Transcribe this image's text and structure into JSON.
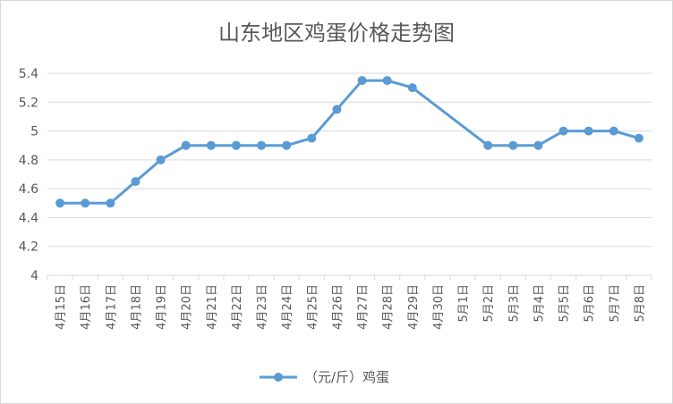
{
  "chart_data": {
    "type": "line",
    "title": "山东地区鸡蛋价格走势图",
    "categories": [
      "4月15日",
      "4月16日",
      "4月17日",
      "4月18日",
      "4月19日",
      "4月20日",
      "4月21日",
      "4月22日",
      "4月23日",
      "4月24日",
      "4月25日",
      "4月26日",
      "4月27日",
      "4月28日",
      "4月29日",
      "4月30日",
      "5月1日",
      "5月2日",
      "5月3日",
      "5月4日",
      "5月5日",
      "5月6日",
      "5月7日",
      "5月8日"
    ],
    "series": [
      {
        "name": "（元/斤）鸡蛋",
        "values": [
          4.5,
          4.5,
          4.5,
          4.65,
          4.8,
          4.9,
          4.9,
          4.9,
          4.9,
          4.9,
          4.95,
          5.15,
          5.35,
          5.35,
          5.3,
          null,
          null,
          4.9,
          4.9,
          4.9,
          5.0,
          5.0,
          5.0,
          4.95
        ],
        "color": "#5b9bd5"
      }
    ],
    "ylim": [
      4,
      5.4
    ],
    "yticks": [
      "4",
      "4.2",
      "4.4",
      "4.6",
      "4.8",
      "5",
      "5.2",
      "5.4"
    ],
    "ytick_values": [
      4,
      4.2,
      4.4,
      4.6,
      4.8,
      5.0,
      5.2,
      5.4
    ],
    "grid": true,
    "legend_position": "bottom",
    "gaps_connected": true
  }
}
